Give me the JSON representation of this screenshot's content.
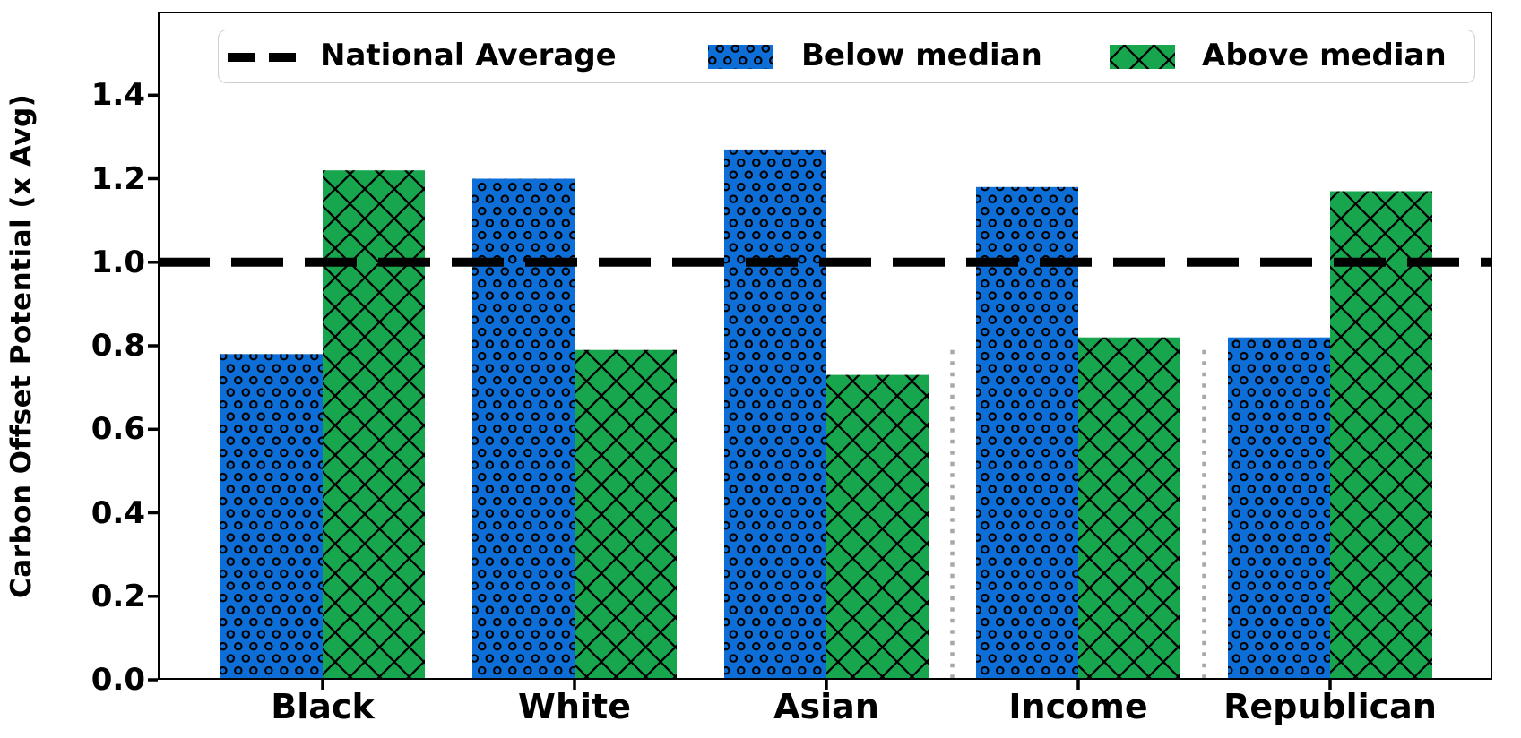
{
  "chart_data": {
    "type": "bar",
    "title": "",
    "ylabel": "Carbon Offset Potential (x Avg)",
    "xlabel": "",
    "categories": [
      "Black",
      "White",
      "Asian",
      "Income",
      "Republican"
    ],
    "series": [
      {
        "name": "Below median",
        "color": "#0d6ed7",
        "hatch": "circles",
        "values": [
          0.78,
          1.2,
          1.27,
          1.18,
          0.82
        ]
      },
      {
        "name": "Above median",
        "color": "#17a64e",
        "hatch": "crosshatch",
        "values": [
          1.22,
          0.79,
          0.73,
          0.82,
          1.17
        ]
      }
    ],
    "reference_line": {
      "label": "National Average",
      "value": 1.0,
      "style": "dashed",
      "color": "#000000"
    },
    "ylim": [
      0,
      1.6
    ],
    "yticks": [
      "0.0",
      "0.2",
      "0.4",
      "0.6",
      "0.8",
      "1.0",
      "1.2",
      "1.4"
    ],
    "grid": false,
    "legend_position": "upper center",
    "dividers": {
      "between": [
        [
          "Asian",
          "Income"
        ],
        [
          "Income",
          "Republican"
        ]
      ],
      "color": "#a8a8a8",
      "style": "dotted",
      "max_value": 0.79
    },
    "hatch_color": "#000000"
  }
}
